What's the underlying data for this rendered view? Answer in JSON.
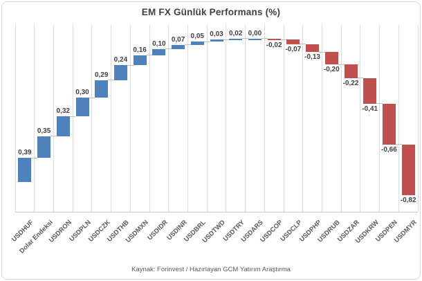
{
  "title": "EM FX Günlük Performans (%)",
  "source_note": "Kaynak: Forinvest / Hazırlayan GCM Yatırım Araştırma",
  "colors": {
    "positive_bar": "#4F81BD",
    "negative_bar": "#C0504D",
    "gridline": "#DCDCDC",
    "connector": "#BFBFBF",
    "data_label": "#404040",
    "axis_label": "#595959",
    "frame_border": "#D7D7D7"
  },
  "chart_data": {
    "type": "bar",
    "subtype": "waterfall-cascade",
    "title": "EM FX Günlük Performans (%)",
    "categories": [
      "USDHUF",
      "Dolar Endeksi",
      "USDRON",
      "USDPLN",
      "USDCZK",
      "USDTHB",
      "USDMXN",
      "USDIDR",
      "USDINR",
      "USDBRL",
      "USDTWD",
      "USDTRY",
      "USDARS",
      "USDCOP",
      "USDCLP",
      "USDPHP",
      "USDRUB",
      "USDZAR",
      "USDKRW",
      "USDPEN",
      "USDMYR"
    ],
    "values": [
      0.39,
      0.35,
      0.32,
      0.3,
      0.29,
      0.24,
      0.16,
      0.1,
      0.07,
      0.05,
      0.03,
      0.02,
      0.0,
      -0.02,
      -0.07,
      -0.13,
      -0.2,
      -0.22,
      -0.41,
      -0.66,
      -0.82
    ],
    "labels": [
      "0,39",
      "0,35",
      "0,32",
      "0,30",
      "0,29",
      "0,24",
      "0,16",
      "0,10",
      "0,07",
      "0,05",
      "0,03",
      "0,02",
      "0,00",
      "-0,02",
      "-0,07",
      "-0,13",
      "-0,20",
      "-0,22",
      "-0,41",
      "-0,66",
      "-0,82"
    ],
    "xlabel": "",
    "ylabel": "",
    "ylim": [
      -0.48,
      2.54
    ],
    "grid": "vertical-only",
    "legend": "none",
    "label_placement": "above positive bars, below negative bars",
    "connector_lines": true
  }
}
